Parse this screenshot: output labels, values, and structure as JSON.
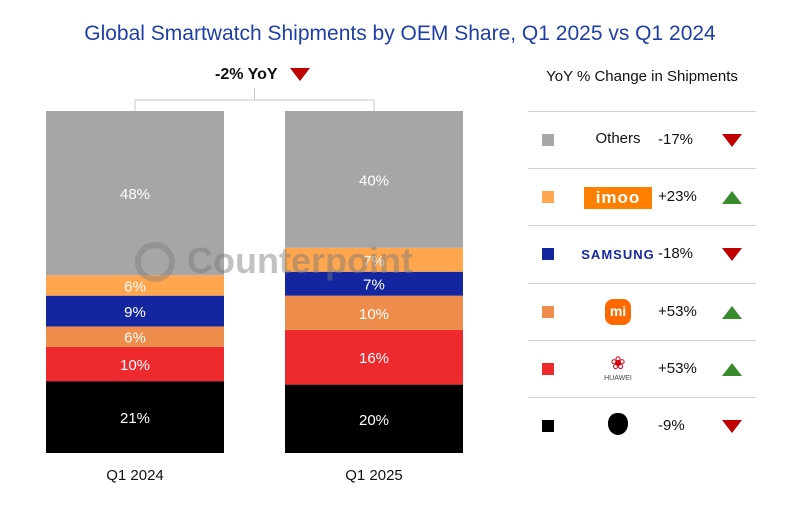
{
  "chart_data": {
    "type": "bar",
    "stacked": true,
    "title": "Global Smartwatch Shipments by OEM Share, Q1 2025 vs Q1 2024",
    "categories": [
      "Q1 2024",
      "Q1 2025"
    ],
    "ylim": [
      0,
      100
    ],
    "series": [
      {
        "name": "Apple",
        "color": "#000000",
        "values": [
          21,
          20
        ]
      },
      {
        "name": "Huawei",
        "color": "#ee2a2e",
        "values": [
          10,
          16
        ]
      },
      {
        "name": "Xiaomi",
        "color": "#ee8c4c",
        "values": [
          6,
          10
        ]
      },
      {
        "name": "Samsung",
        "color": "#1326a0",
        "values": [
          9,
          7
        ]
      },
      {
        "name": "imoo",
        "color": "#ffa64f",
        "values": [
          6,
          7
        ]
      },
      {
        "name": "Others",
        "color": "#a6a6a6",
        "values": [
          48,
          40
        ]
      }
    ],
    "total_change": "-2% YoY",
    "total_direction": "down"
  },
  "legend": {
    "title": "YoY % Change in Shipments",
    "items": [
      {
        "brand": "Others",
        "logo": "text",
        "color": "#a6a6a6",
        "change": "-17%",
        "direction": "down"
      },
      {
        "brand": "imoo",
        "logo": "imoo-logo",
        "color": "#ffa64f",
        "change": "+23%",
        "direction": "up"
      },
      {
        "brand": "SAMSUNG",
        "logo": "samsung-logo",
        "color": "#1326a0",
        "change": "-18%",
        "direction": "up-no"
      },
      {
        "brand": "mi",
        "logo": "xiaomi-logo",
        "color": "#ee8c4c",
        "change": "+53%",
        "direction": "up"
      },
      {
        "brand": "HUAWEI",
        "logo": "huawei-logo",
        "color": "#ee2a2e",
        "change": "+53%",
        "direction": "up"
      },
      {
        "brand": "Apple",
        "logo": "apple-logo",
        "color": "#000000",
        "change": "-9%",
        "direction": "down"
      }
    ]
  },
  "watermark": "Counterpoint"
}
